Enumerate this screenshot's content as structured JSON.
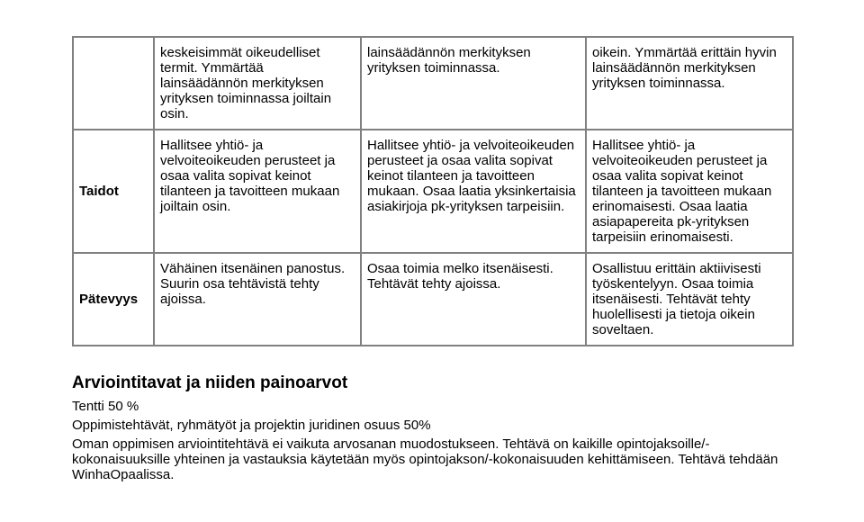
{
  "table": {
    "rows": [
      {
        "head": "",
        "c1": "keskeisimmät oikeudelliset termit. Ymmärtää lainsäädännön merkityksen yrityksen toiminnassa joiltain osin.",
        "c2": "lainsäädännön merkityksen yrityksen toiminnassa.",
        "c3": "oikein. Ymmärtää erittäin hyvin lainsäädännön merkityksen yrityksen toiminnassa."
      },
      {
        "head": "Taidot",
        "c1": "Hallitsee yhtiö- ja velvoiteoikeuden perusteet ja osaa valita sopivat keinot tilanteen ja tavoitteen mukaan joiltain osin.",
        "c2": "Hallitsee yhtiö- ja velvoiteoikeuden perusteet ja osaa valita sopivat keinot tilanteen ja tavoitteen mukaan. Osaa laatia yksinkertaisia asiakirjoja pk-yrityksen tarpeisiin.",
        "c3": "Hallitsee yhtiö- ja velvoiteoikeuden perusteet ja osaa valita sopivat keinot tilanteen ja tavoitteen mukaan erinomaisesti. Osaa laatia asiapapereita pk-yrityksen tarpeisiin erinomaisesti."
      },
      {
        "head": "Pätevyys",
        "c1": "Vähäinen itsenäinen panostus. Suurin osa tehtävistä tehty ajoissa.",
        "c2": "Osaa toimia melko itsenäisesti. Tehtävät tehty ajoissa.",
        "c3": "Osallistuu erittäin aktiivisesti työskentelyyn. Osaa toimia itsenäisesti. Tehtävät tehty huolellisesti ja tietoja oikein soveltaen."
      }
    ]
  },
  "section": {
    "heading": "Arviointitavat ja niiden painoarvot",
    "line1": "Tentti 50 %",
    "line2": "Oppimistehtävät, ryhmätyöt ja projektin juridinen osuus 50%",
    "line3": "Oman oppimisen arviointitehtävä ei vaikuta arvosanan muodostukseen. Tehtävä on kaikille opintojaksoille/-kokonaisuuksille yhteinen ja vastauksia käytetään myös opintojakson/-kokonaisuuden kehittämiseen. Tehtävä tehdään WinhaOpaalissa."
  }
}
